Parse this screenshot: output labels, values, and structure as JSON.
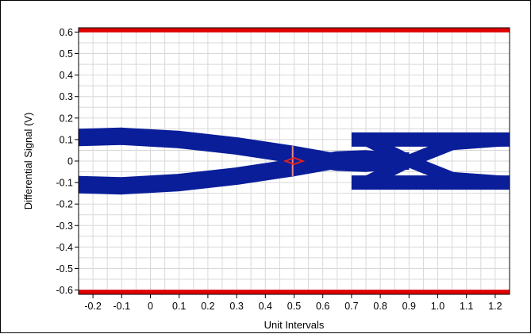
{
  "chart_data": {
    "type": "line",
    "title": "",
    "xlabel": "Unit Intervals",
    "ylabel": "Differential Signal (V)",
    "xlim": [
      -0.25,
      1.25
    ],
    "ylim": [
      -0.62,
      0.62
    ],
    "grid": true,
    "x_ticks": [
      "-0.2",
      "-0.1",
      "0",
      "0.1",
      "0.2",
      "0.3",
      "0.4",
      "0.5",
      "0.6",
      "0.7",
      "0.8",
      "0.9",
      "1.0",
      "1.1",
      "1.2"
    ],
    "y_ticks": [
      "0.6",
      "0.5",
      "0.4",
      "0.3",
      "0.2",
      "0.1",
      "0",
      "-0.1",
      "-0.2",
      "-0.3",
      "-0.4",
      "-0.5",
      "-0.6"
    ],
    "colors": {
      "eye": "#0a1e9a",
      "limit": "#e00000",
      "mask": "#e02020",
      "grid": "#d8d8d8"
    },
    "series": [
      {
        "role": "eye-upper-band",
        "x": [
          -0.25,
          -0.1,
          0.1,
          0.3,
          0.5,
          0.65,
          0.75,
          0.85,
          0.9
        ],
        "y": [
          0.11,
          0.115,
          0.1,
          0.07,
          0.03,
          -0.005,
          -0.01,
          0.0,
          0.0
        ]
      },
      {
        "role": "eye-lower-band",
        "x": [
          -0.25,
          -0.1,
          0.1,
          0.3,
          0.5,
          0.65,
          0.75,
          0.85,
          0.9
        ],
        "y": [
          -0.11,
          -0.115,
          -0.1,
          -0.07,
          -0.03,
          0.005,
          0.01,
          0.0,
          0.0
        ]
      },
      {
        "role": "eye-top-rail",
        "x": [
          0.7,
          0.9,
          1.1,
          1.25
        ],
        "y": [
          0.1,
          0.1,
          0.1,
          0.1
        ]
      },
      {
        "role": "eye-bottom-rail",
        "x": [
          0.7,
          0.9,
          1.1,
          1.25
        ],
        "y": [
          -0.1,
          -0.1,
          -0.1,
          -0.1
        ]
      },
      {
        "role": "eye-rising-crossing",
        "x": [
          0.75,
          0.9,
          1.05,
          1.25
        ],
        "y": [
          -0.1,
          0.0,
          0.08,
          0.1
        ]
      },
      {
        "role": "eye-falling-crossing",
        "x": [
          0.75,
          0.9,
          1.05,
          1.25
        ],
        "y": [
          0.1,
          0.0,
          -0.08,
          -0.1
        ]
      }
    ],
    "limits": [
      0.61,
      -0.61
    ],
    "mask": {
      "x": [
        0.47,
        0.5,
        0.53,
        0.5
      ],
      "y": [
        0.0,
        0.015,
        0.0,
        -0.015
      ]
    }
  }
}
